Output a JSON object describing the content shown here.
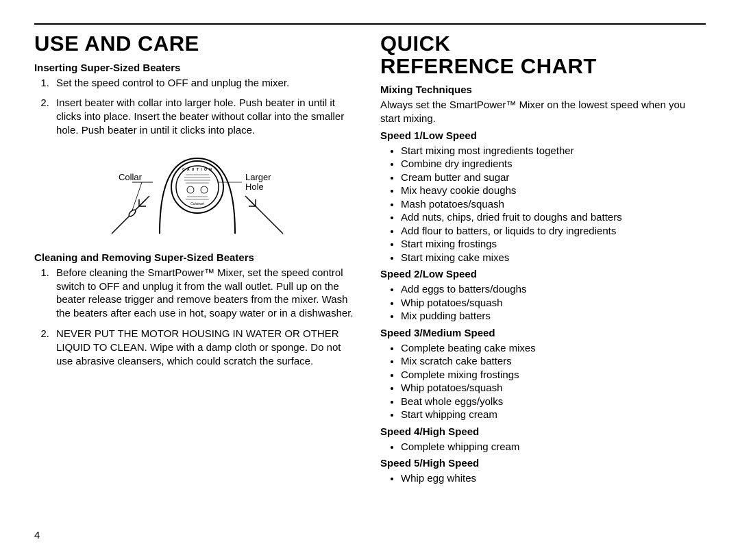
{
  "page_number": "4",
  "left": {
    "heading": "USE AND CARE",
    "section1_title": "Inserting Super-Sized Beaters",
    "section1_steps": [
      "Set the speed control to OFF and unplug the mixer.",
      "Insert beater with collar into larger hole. Push beater in until it clicks into place. Insert the beater without collar into the smaller hole. Push beater in until it clicks into place."
    ],
    "diagram": {
      "label_left": "Collar",
      "label_right_1": "Larger",
      "label_right_2": "Hole"
    },
    "section2_title": "Cleaning and Removing Super-Sized Beaters",
    "section2_steps": [
      "Before cleaning the SmartPower™ Mixer, set the speed control switch to OFF and unplug it from the wall outlet. Pull up on the beater release trigger and remove beaters from the mixer. Wash the beaters after each use in hot, soapy water or in a dishwasher.",
      "NEVER PUT THE MOTOR HOUSING IN WATER OR OTHER LIQUID TO CLEAN. Wipe with a damp cloth or sponge. Do not use abrasive cleansers, which could scratch the surface."
    ]
  },
  "right": {
    "heading_line1": "QUICK",
    "heading_line2": "REFERENCE CHART",
    "sub_mixing": "Mixing Techniques",
    "mixing_text": "Always set the SmartPower™ Mixer on the lowest speed when you start mixing.",
    "speed1_title": "Speed 1/Low Speed",
    "speed1_items": [
      "Start mixing most ingredients together",
      "Combine dry ingredients",
      "Cream butter and sugar",
      "Mix heavy cookie doughs",
      "Mash potatoes/squash",
      "Add nuts, chips, dried fruit to doughs and batters",
      "Add flour to batters, or liquids to dry ingredients",
      "Start mixing frostings",
      "Start mixing cake mixes"
    ],
    "speed2_title": "Speed 2/Low Speed",
    "speed2_items": [
      "Add eggs to batters/doughs",
      "Whip potatoes/squash",
      "Mix pudding batters"
    ],
    "speed3_title": "Speed 3/Medium Speed",
    "speed3_items": [
      "Complete beating cake mixes",
      "Mix scratch cake batters",
      "Complete mixing frostings",
      "Whip potatoes/squash",
      "Beat whole eggs/yolks",
      "Start whipping cream"
    ],
    "speed4_title": "Speed 4/High Speed",
    "speed4_items": [
      "Complete whipping cream"
    ],
    "speed5_title": "Speed 5/High Speed",
    "speed5_items": [
      "Whip egg whites"
    ]
  }
}
